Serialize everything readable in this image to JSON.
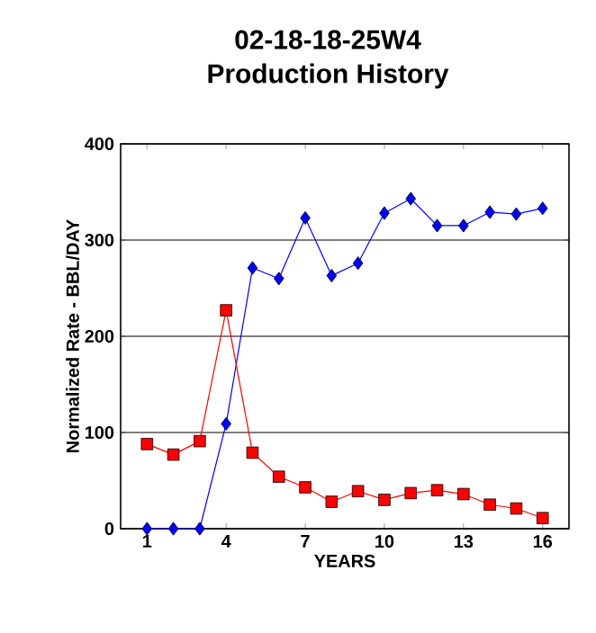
{
  "chart_data": {
    "type": "line",
    "title": "02-18-18-25W4",
    "subtitle": "Production History",
    "xlabel": "YEARS",
    "ylabel": "Normalized Rate - BBL/DAY",
    "x": [
      1,
      2,
      3,
      4,
      5,
      6,
      7,
      8,
      9,
      10,
      11,
      12,
      13,
      14,
      15,
      16
    ],
    "series": [
      {
        "color": "#0000ff",
        "marker": "diamond",
        "values": [
          0,
          0,
          0,
          109,
          271,
          260,
          323,
          263,
          276,
          328,
          343,
          315,
          315,
          329,
          327,
          333
        ]
      },
      {
        "color": "#ff0000",
        "marker": "square",
        "values": [
          88,
          77,
          91,
          227,
          79,
          54,
          43,
          28,
          39,
          30,
          37,
          40,
          36,
          25,
          21,
          11
        ]
      }
    ],
    "xlim": [
      0,
      17
    ],
    "xticks": [
      1,
      4,
      7,
      10,
      13,
      16
    ],
    "ylim": [
      0,
      400
    ],
    "yticks": [
      0,
      100,
      200,
      300,
      400
    ],
    "grid": "y"
  }
}
